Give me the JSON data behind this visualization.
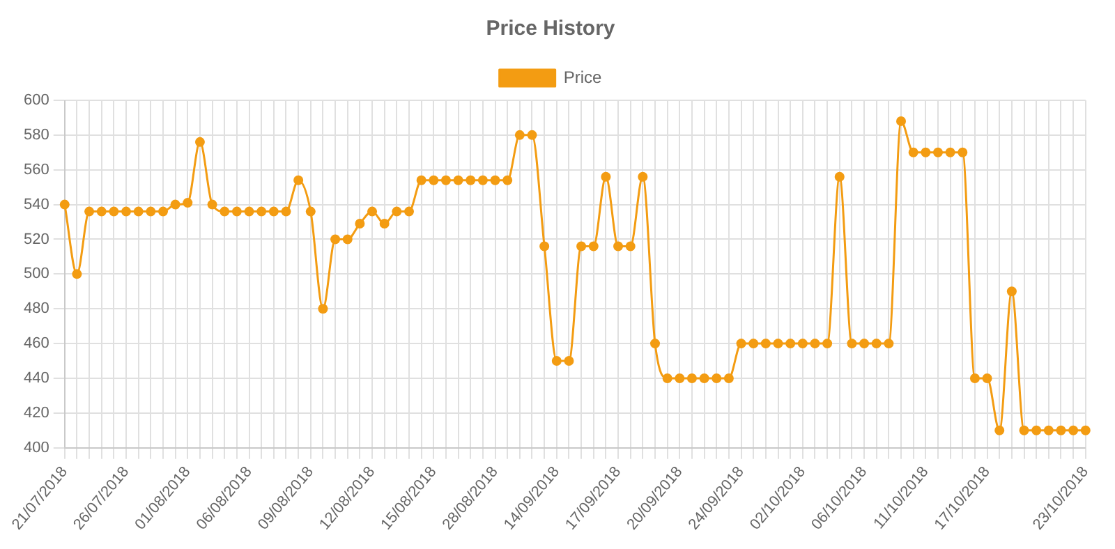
{
  "chart_data": {
    "type": "line",
    "title": "Price History",
    "categories": [
      "21/07/2018",
      null,
      null,
      null,
      null,
      "26/07/2018",
      null,
      null,
      null,
      null,
      "01/08/2018",
      null,
      null,
      null,
      null,
      "06/08/2018",
      null,
      null,
      null,
      null,
      "09/08/2018",
      null,
      null,
      null,
      null,
      "12/08/2018",
      null,
      null,
      null,
      null,
      "15/08/2018",
      null,
      null,
      null,
      null,
      "28/08/2018",
      null,
      null,
      null,
      null,
      "14/09/2018",
      null,
      null,
      null,
      null,
      "17/09/2018",
      null,
      null,
      null,
      null,
      "20/09/2018",
      null,
      null,
      null,
      null,
      "24/09/2018",
      null,
      null,
      null,
      null,
      "02/10/2018",
      null,
      null,
      null,
      null,
      "06/10/2018",
      null,
      null,
      null,
      null,
      "11/10/2018",
      null,
      null,
      null,
      null,
      "17/10/2018",
      null,
      null,
      null,
      null,
      null,
      null,
      null,
      "23/10/2018"
    ],
    "series": [
      {
        "name": "Price",
        "color": "#f39c12",
        "values": [
          540,
          500,
          536,
          536,
          536,
          536,
          536,
          536,
          536,
          540,
          541,
          576,
          540,
          536,
          536,
          536,
          536,
          536,
          536,
          554,
          536,
          480,
          520,
          520,
          529,
          536,
          529,
          536,
          536,
          554,
          554,
          554,
          554,
          554,
          554,
          554,
          554,
          580,
          580,
          516,
          450,
          450,
          516,
          516,
          556,
          516,
          516,
          556,
          460,
          440,
          440,
          440,
          440,
          440,
          440,
          460,
          460,
          460,
          460,
          460,
          460,
          460,
          460,
          556,
          460,
          460,
          460,
          460,
          588,
          570,
          570,
          570,
          570,
          570,
          440,
          440,
          410,
          490,
          410,
          410,
          410,
          410,
          410,
          410
        ]
      }
    ],
    "ylim": [
      400,
      600
    ],
    "yticks": [
      400,
      420,
      440,
      460,
      480,
      500,
      520,
      540,
      560,
      580,
      600
    ],
    "grid": true,
    "legend": "top",
    "marker": "circle",
    "line_style": "solid"
  }
}
